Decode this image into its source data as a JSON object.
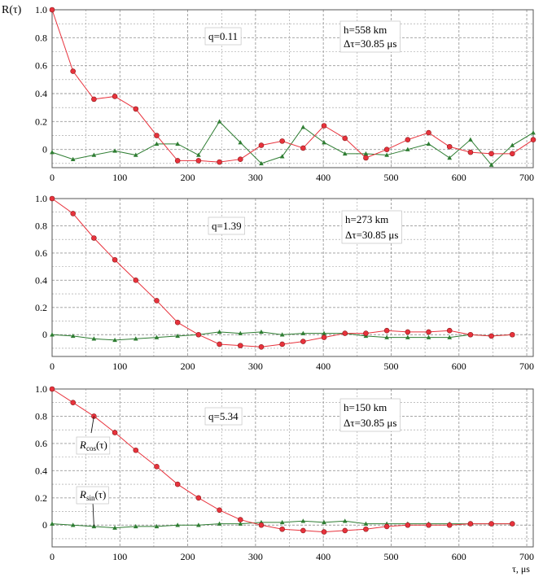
{
  "figure": {
    "ylabel": "R(τ)",
    "xlabel": "τ, μs"
  },
  "colors": {
    "cos": "#e8323c",
    "sin": "#2e7d32",
    "grid": "#9a9a9a"
  },
  "chart_data": [
    {
      "type": "line",
      "annotations": {
        "q": "q=0.11",
        "h": "h=558 km",
        "dt": "Δτ=30.85 μs"
      },
      "x": [
        0,
        30.85,
        61.7,
        92.55,
        123.4,
        154.25,
        185.1,
        215.95,
        246.8,
        277.65,
        308.5,
        339.35,
        370.2,
        401.05,
        431.9,
        462.75,
        493.6,
        524.45,
        555.3,
        586.15,
        617.0,
        647.85,
        678.7,
        709.55
      ],
      "series": [
        {
          "values": [
            1.0,
            0.56,
            0.36,
            0.38,
            0.29,
            0.1,
            -0.08,
            -0.08,
            -0.09,
            -0.07,
            0.03,
            0.06,
            0.01,
            0.17,
            0.08,
            -0.06,
            0.0,
            0.07,
            0.12,
            0.02,
            -0.02,
            -0.03,
            -0.03,
            0.07
          ]
        },
        {
          "values": [
            -0.02,
            -0.07,
            -0.04,
            -0.01,
            -0.04,
            0.04,
            0.04,
            -0.04,
            0.2,
            0.05,
            -0.1,
            -0.05,
            0.16,
            0.05,
            -0.03,
            -0.03,
            -0.04,
            0.0,
            0.04,
            -0.06,
            0.07,
            -0.11,
            0.03,
            0.12
          ]
        }
      ],
      "xlim": [
        0,
        709.55
      ],
      "ylim": [
        -0.13,
        1.0
      ],
      "xticks": [
        0,
        100,
        200,
        300,
        400,
        500,
        600,
        700
      ],
      "yticks": [
        0,
        0.2,
        0.4,
        0.6,
        0.8,
        1.0
      ],
      "ytick_labels": [
        "0",
        "0.2",
        "0.4",
        "0.6",
        "0.8",
        "1.0"
      ],
      "grid": true
    },
    {
      "type": "line",
      "annotations": {
        "q": "q=1.39",
        "h": "h=273 km",
        "dt": "Δτ=30.85 μs"
      },
      "x": [
        0,
        30.85,
        61.7,
        92.55,
        123.4,
        154.25,
        185.1,
        215.95,
        246.8,
        277.65,
        308.5,
        339.35,
        370.2,
        401.05,
        431.9,
        462.75,
        493.6,
        524.45,
        555.3,
        586.15,
        617.0,
        647.85,
        678.7
      ],
      "series": [
        {
          "values": [
            1.0,
            0.89,
            0.71,
            0.55,
            0.4,
            0.25,
            0.09,
            0.0,
            -0.07,
            -0.08,
            -0.09,
            -0.07,
            -0.05,
            -0.02,
            0.01,
            0.01,
            0.03,
            0.02,
            0.02,
            0.03,
            0.0,
            -0.01,
            0.0
          ]
        },
        {
          "values": [
            0.0,
            -0.01,
            -0.03,
            -0.04,
            -0.03,
            -0.02,
            -0.01,
            0.0,
            0.02,
            0.01,
            0.02,
            0.0,
            0.01,
            0.01,
            0.01,
            -0.01,
            -0.02,
            -0.02,
            -0.02,
            -0.02,
            0.0,
            -0.01,
            0.0
          ]
        }
      ],
      "xlim": [
        0,
        709.55
      ],
      "ylim": [
        -0.16,
        1.0
      ],
      "xticks": [
        0,
        100,
        200,
        300,
        400,
        500,
        600,
        700
      ],
      "yticks": [
        0,
        0.2,
        0.4,
        0.6,
        0.8,
        1.0
      ],
      "ytick_labels": [
        "0",
        "0.2",
        "0.4",
        "0.6",
        "0.8",
        "1.0"
      ],
      "grid": true
    },
    {
      "type": "line",
      "annotations": {
        "q": "q=5.34",
        "h": "h=150 km",
        "dt": "Δτ=30.85 μs"
      },
      "x": [
        0,
        30.85,
        61.7,
        92.55,
        123.4,
        154.25,
        185.1,
        215.95,
        246.8,
        277.65,
        308.5,
        339.35,
        370.2,
        401.05,
        431.9,
        462.75,
        493.6,
        524.45,
        555.3,
        586.15,
        617.0,
        647.85,
        678.7
      ],
      "series": [
        {
          "name": "Rcos(τ)",
          "values": [
            1.0,
            0.9,
            0.8,
            0.68,
            0.55,
            0.43,
            0.3,
            0.2,
            0.11,
            0.04,
            0.0,
            -0.03,
            -0.04,
            -0.05,
            -0.04,
            -0.03,
            -0.01,
            0.0,
            0.0,
            0.0,
            0.01,
            0.01,
            0.01
          ]
        },
        {
          "name": "Rsin(τ)",
          "values": [
            0.01,
            0.0,
            -0.01,
            -0.02,
            -0.01,
            -0.01,
            0.0,
            0.0,
            0.01,
            0.01,
            0.02,
            0.02,
            0.03,
            0.02,
            0.03,
            0.01,
            0.01,
            0.01,
            0.01,
            0.01,
            0.01,
            0.01,
            0.01
          ]
        }
      ],
      "xlim": [
        0,
        709.55
      ],
      "ylim": [
        -0.16,
        1.0
      ],
      "xticks": [
        0,
        100,
        200,
        300,
        400,
        500,
        600,
        700
      ],
      "yticks": [
        0,
        0.2,
        0.4,
        0.6,
        0.8,
        1.0
      ],
      "ytick_labels": [
        "0",
        "0.2",
        "0.4",
        "0.6",
        "0.8",
        "1.0"
      ],
      "grid": true,
      "series_labels": {
        "cos": {
          "main": "R",
          "sub": "cos",
          "arg": "(τ)"
        },
        "sin": {
          "main": "R",
          "sub": "sin",
          "arg": "(τ)"
        }
      }
    }
  ]
}
